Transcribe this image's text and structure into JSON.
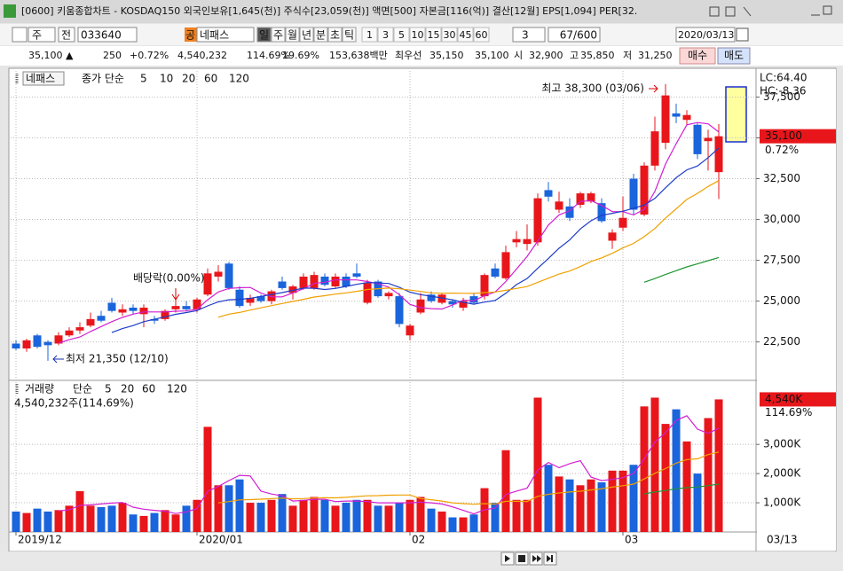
{
  "window": {
    "title": "[0600] 키움종합차트 - KOSDAQ150 외국인보유[1,645(천)] 주식수[23,059(천)] 액면[500] 자본금[116(억)] 결산[12월] EPS[1,094] PER[32."
  },
  "toolbar": {
    "view": "주",
    "adj": "전",
    "code": "033640",
    "market": "공",
    "name": "네패스",
    "periods": [
      "일",
      "주",
      "월",
      "년",
      "분",
      "초",
      "틱"
    ],
    "intervals": [
      "1",
      "3",
      "5",
      "10",
      "15",
      "30",
      "45",
      "60"
    ],
    "count": "3",
    "range": "67/600",
    "date": "2020/03/13"
  },
  "quote": {
    "price": "35,100 ▲",
    "change": "250",
    "change_pct": "+0.72%",
    "volume": "4,540,232",
    "volume_ratio": "114.69%",
    "turnover": "19.69%",
    "amount": "153,638백만",
    "best_label": "최우선",
    "ask": "35,150",
    "bid": "35,100",
    "open_label": "시",
    "open": "32,900",
    "high_label": "고",
    "high": "35,850",
    "low_label": "저",
    "low": "31,250",
    "buy": "매수",
    "sell": "매도"
  },
  "chart_data": [
    {
      "type": "candlestick",
      "name": "네패스",
      "ma_label": "종가 단순",
      "ma": [
        {
          "name": "5",
          "color": "#d21ed2"
        },
        {
          "name": "10",
          "color": "#1e3cc8"
        },
        {
          "name": "20",
          "color": "#f0a000"
        },
        {
          "name": "60",
          "color": "#1e9632"
        },
        {
          "name": "120",
          "color": "#808080"
        }
      ],
      "up_color": "#e8161b",
      "down_color": "#1a64dc",
      "open": [
        22400,
        22100,
        22900,
        22500,
        22400,
        22900,
        23200,
        23500,
        24100,
        24900,
        24300,
        24600,
        24200,
        23900,
        23900,
        24500,
        24700,
        24500,
        25400,
        26500,
        27300,
        25700,
        24900,
        25300,
        25000,
        26200,
        25500,
        25800,
        25800,
        26500,
        25900,
        26500,
        26700,
        24900,
        26200,
        25300,
        25300,
        22900,
        24300,
        25400,
        24900,
        25000,
        24600,
        25300,
        25300,
        27000,
        26400,
        28600,
        28500,
        28600,
        31800,
        30600,
        30800,
        30900,
        31100,
        31000,
        28700,
        29500,
        32500,
        30300,
        33300,
        34700,
        36500,
        36100,
        35800,
        34800,
        32900
      ],
      "high": [
        22600,
        22700,
        23000,
        22600,
        23100,
        23400,
        23700,
        24300,
        24400,
        25200,
        24800,
        24800,
        24800,
        24100,
        24500,
        25100,
        25000,
        25200,
        27000,
        27200,
        27400,
        25900,
        25400,
        25400,
        25700,
        26500,
        26000,
        26700,
        26800,
        26700,
        26700,
        26700,
        27300,
        26300,
        26300,
        25600,
        25500,
        23600,
        25500,
        25600,
        25500,
        25100,
        25200,
        25500,
        26700,
        27300,
        28400,
        29300,
        29700,
        31600,
        32300,
        31700,
        31300,
        31700,
        31700,
        31300,
        29400,
        31400,
        32800,
        33500,
        36300,
        38300,
        37100,
        36700,
        35900,
        35500,
        35850
      ],
      "low": [
        22000,
        21900,
        22100,
        21350,
        22300,
        22800,
        23000,
        23400,
        23700,
        24300,
        24100,
        24200,
        23400,
        23600,
        23800,
        24300,
        24400,
        24300,
        25300,
        26200,
        25700,
        24600,
        24700,
        24900,
        24800,
        25700,
        25100,
        25700,
        25700,
        25900,
        25800,
        25800,
        26400,
        24800,
        25200,
        25100,
        23400,
        22600,
        24200,
        24900,
        24800,
        24600,
        24400,
        24800,
        25100,
        26400,
        26300,
        28300,
        28100,
        28400,
        31100,
        30400,
        29900,
        30700,
        31000,
        29800,
        28200,
        29300,
        30300,
        30200,
        33000,
        34300,
        35900,
        35800,
        33700,
        33000,
        31250
      ],
      "close": [
        22100,
        22600,
        22200,
        22300,
        22900,
        23200,
        23400,
        23900,
        23800,
        24400,
        24500,
        24400,
        24600,
        23800,
        24400,
        24700,
        24500,
        25100,
        26700,
        26800,
        25800,
        24700,
        25200,
        25000,
        25600,
        25800,
        25900,
        26500,
        26600,
        26000,
        26500,
        25900,
        26500,
        26100,
        25300,
        25500,
        23600,
        23500,
        25100,
        25000,
        25400,
        24800,
        25000,
        24900,
        26600,
        26500,
        28000,
        28800,
        28800,
        31300,
        31400,
        31100,
        30100,
        31600,
        31600,
        29900,
        29200,
        30100,
        30600,
        33300,
        35400,
        37600,
        36300,
        36400,
        34000,
        35000,
        35100
      ],
      "xlim": [
        -0.5,
        69.5
      ],
      "ylim": [
        20200,
        39100
      ],
      "yticks": [
        {
          "value": 22500,
          "label": "22,500"
        },
        {
          "value": 25000,
          "label": "25,000"
        },
        {
          "value": 27500,
          "label": "27,500"
        },
        {
          "value": 30000,
          "label": "30,000"
        },
        {
          "value": 32500,
          "label": "32,500"
        },
        {
          "value": 35000,
          "label": "35,000"
        },
        {
          "value": 37500,
          "label": "37,500"
        }
      ],
      "xticks": [
        {
          "value": 0,
          "label": "2019/12"
        },
        {
          "value": 17,
          "label": "2020/01"
        },
        {
          "value": 37,
          "label": "02"
        },
        {
          "value": 57,
          "label": "03"
        }
      ],
      "cursor_date": "03/13",
      "annotations": {
        "high": "최고 38,300 (03/06)",
        "low": "최저 21,350 (12/10)",
        "dividend": "배당락(0.00%)",
        "lc": "LC:64.40",
        "hc": "HC:-8.36",
        "price": "35,100",
        "change": "0.72%"
      }
    },
    {
      "type": "bar",
      "name": "거래량",
      "ma_label": "단순",
      "ma": [
        {
          "name": "5",
          "color": "#d21ed2"
        },
        {
          "name": "20",
          "color": "#f0a000"
        },
        {
          "name": "60",
          "color": "#1e9632"
        },
        {
          "name": "120",
          "color": "#808080"
        }
      ],
      "info": "4,540,232주(114.69%)",
      "values": [
        700,
        650,
        800,
        700,
        750,
        900,
        1400,
        900,
        850,
        900,
        1000,
        600,
        550,
        650,
        750,
        600,
        900,
        1100,
        3600,
        1600,
        1600,
        1800,
        1000,
        1000,
        1100,
        1300,
        900,
        1100,
        1200,
        1100,
        900,
        1000,
        1100,
        1100,
        900,
        900,
        1000,
        1100,
        1200,
        800,
        700,
        500,
        500,
        600,
        1500,
        1000,
        2800,
        1100,
        1100,
        4600,
        2300,
        1900,
        1800,
        1600,
        1800,
        1700,
        2100,
        2100,
        2300,
        4300,
        4600,
        3700,
        4200,
        3100,
        2000,
        3900,
        4540.232
      ],
      "ylim": [
        0,
        5100
      ],
      "yticks": [
        {
          "value": 1000,
          "label": "1,000K"
        },
        {
          "value": 2000,
          "label": "2,000K"
        },
        {
          "value": 3000,
          "label": "3,000K"
        }
      ],
      "annotations": {
        "volume": "4,540K",
        "ratio": "114.69%"
      }
    }
  ]
}
